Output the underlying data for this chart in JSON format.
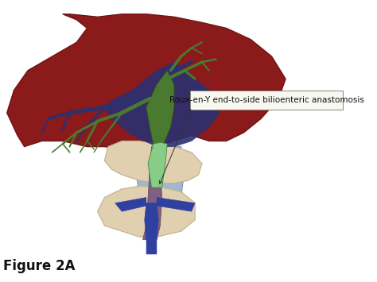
{
  "figure_label": "Figure 2A",
  "annotation_text": "Roux-en-Y end-to-side bilioenteric anastomosis",
  "liver_color": "#8B1A1A",
  "liver_outline": "#701515",
  "bile_duct_green": "#4A7A30",
  "bile_duct_dark": "#2D5A10",
  "portal_blue_dark": "#2B3070",
  "portal_blue_mid": "#4B5590",
  "blue_tube_color": "#8090B8",
  "blue_tube_dark": "#3040A0",
  "jejunum_color": "#E0D0B0",
  "jejunum_outline": "#C0B090",
  "purple_tube": "#806080",
  "dark_blue_yshape": "#3040A0",
  "green_duct_light": "#88CC88",
  "green_duct_dark": "#3A8A3A",
  "annotation_box_color": "#F8F8F0",
  "annotation_box_edge": "#888878",
  "bg_color": "#FFFFFF",
  "label_fontsize": 12,
  "annotation_fontsize": 7.5
}
